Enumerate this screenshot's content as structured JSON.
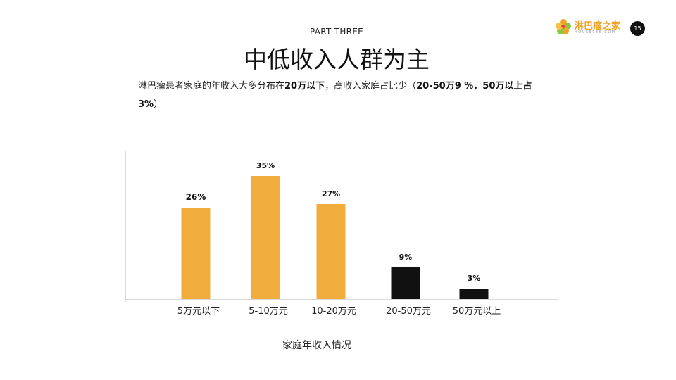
{
  "header": {
    "part_label": "PART THREE",
    "title": "中低收入人群为主",
    "page_number": "15"
  },
  "logo": {
    "text": "淋巴瘤之家",
    "subtext": "HOUSE086.COM"
  },
  "description": {
    "segments": [
      {
        "text": "淋巴瘤患者家庭的年收入大多分布在",
        "bold": false
      },
      {
        "text": "20万以下",
        "bold": true
      },
      {
        "text": "，高收入家庭占比少（",
        "bold": false
      },
      {
        "text": "20-50万9 %，50万以上占3%",
        "bold": true
      },
      {
        "text": "）",
        "bold": false
      }
    ]
  },
  "colors": {
    "accent": "#F0AD3E",
    "dark": "#111111"
  },
  "chart_data": {
    "type": "bar",
    "title": "",
    "xlabel": "家庭年收入情况",
    "ylabel": "",
    "categories": [
      "5万元以下",
      "5-10万元",
      "10-20万元",
      "20-50万元",
      "50万元以上"
    ],
    "values": [
      26,
      35,
      27,
      9,
      3
    ],
    "data_labels": [
      "26%",
      "35%",
      "27%",
      "9%",
      "3%"
    ],
    "bar_colors": [
      "#F0AD3E",
      "#F0AD3E",
      "#F0AD3E",
      "#111111",
      "#111111"
    ],
    "ylim": [
      0,
      35
    ],
    "grid": false
  }
}
